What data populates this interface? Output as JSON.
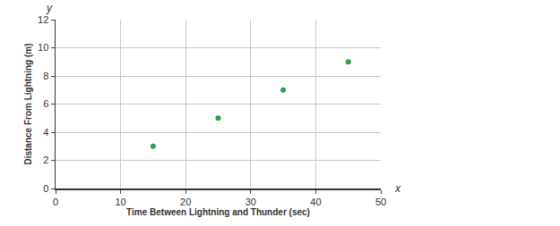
{
  "chart_data": {
    "type": "scatter",
    "x_label": "Time Between Lightning and Thunder (sec)",
    "y_label": "Distance From Lightning (m)",
    "x": [
      15,
      25,
      35,
      45
    ],
    "values": [
      3,
      5,
      7,
      9
    ],
    "color": "#2e9e4f",
    "marker": "circle",
    "xlim": [
      0,
      50
    ],
    "xticks": [
      0,
      10,
      20,
      30,
      40,
      50
    ],
    "ylim": [
      0,
      12
    ],
    "yticks": [
      0,
      2,
      4,
      6,
      8,
      10,
      12
    ],
    "grid": true,
    "annotations": [
      {
        "text": "x",
        "axis": "x"
      },
      {
        "text": "y",
        "axis": "y"
      }
    ]
  }
}
